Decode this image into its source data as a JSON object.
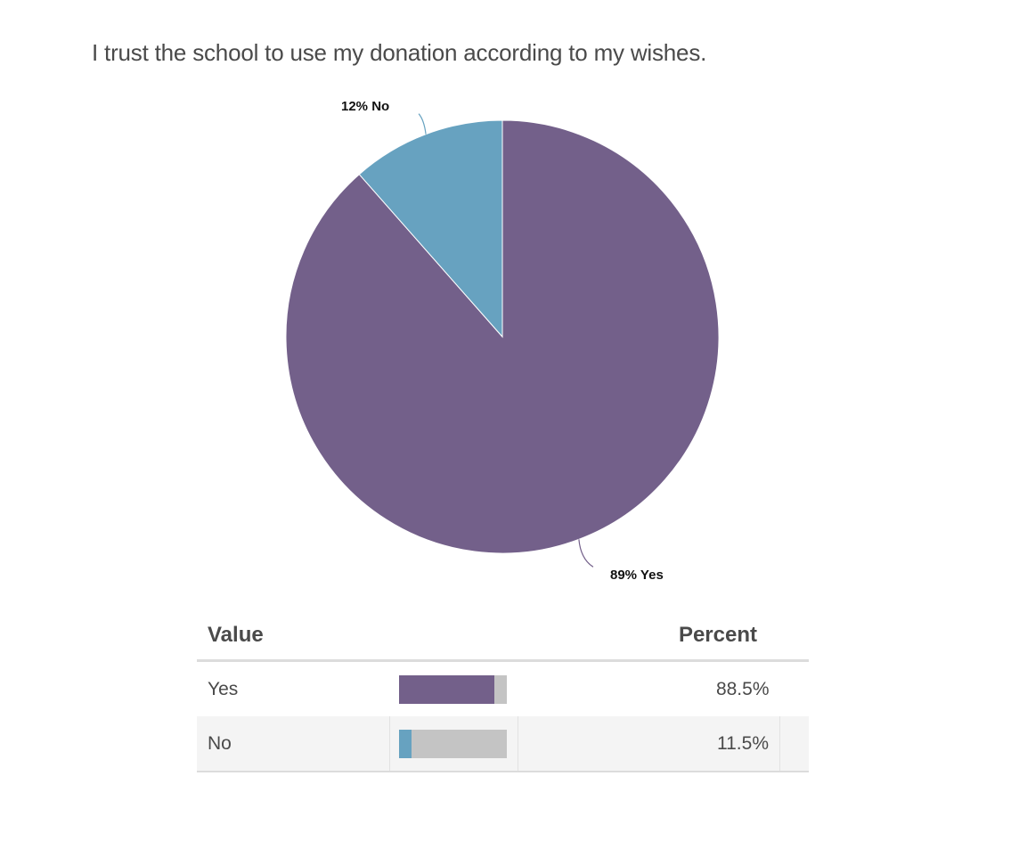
{
  "question": "I trust the school to use my donation according to my wishes.",
  "colors": {
    "yes": "#73608a",
    "no": "#67a2c0",
    "bar_track": "#c4c4c4"
  },
  "chart_data": {
    "type": "pie",
    "title": "I trust the school to use my donation according to my wishes.",
    "slices": [
      {
        "label": "Yes",
        "value": 88.5,
        "display_label": "89% Yes",
        "color": "#73608a"
      },
      {
        "label": "No",
        "value": 11.5,
        "display_label": "12% No",
        "color": "#67a2c0"
      }
    ]
  },
  "table": {
    "headers": {
      "value": "Value",
      "percent": "Percent"
    },
    "rows": [
      {
        "value": "Yes",
        "percent": "88.5%",
        "fraction": 0.885,
        "color": "#73608a"
      },
      {
        "value": "No",
        "percent": "11.5%",
        "fraction": 0.115,
        "color": "#67a2c0"
      }
    ]
  }
}
